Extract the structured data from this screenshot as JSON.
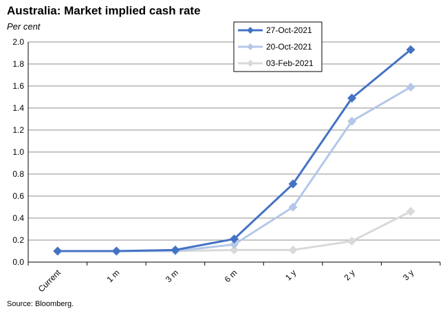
{
  "chart_data": {
    "type": "line",
    "title": "Australia: Market implied cash rate",
    "unit_label": "Per cent",
    "source": "Source: Bloomberg.",
    "categories": [
      "Current",
      "1 m",
      "3 m",
      "6 m",
      "1 y",
      "2 y",
      "3 y"
    ],
    "ylim": [
      0,
      2.0
    ],
    "yticks": [
      "0.0",
      "0.2",
      "0.4",
      "0.6",
      "0.8",
      "1.0",
      "1.2",
      "1.4",
      "1.6",
      "1.8",
      "2.0"
    ],
    "grid": true,
    "legend_position": "top-right",
    "series": [
      {
        "name": "27-Oct-2021",
        "color": "#4472c4",
        "values": [
          0.1,
          0.1,
          0.11,
          0.21,
          0.71,
          1.49,
          1.93
        ]
      },
      {
        "name": "20-Oct-2021",
        "color": "#b4c7e7",
        "values": [
          0.1,
          0.1,
          0.1,
          0.16,
          0.5,
          1.28,
          1.59
        ]
      },
      {
        "name": "03-Feb-2021",
        "color": "#d9d9d9",
        "values": [
          0.1,
          0.1,
          0.1,
          0.11,
          0.11,
          0.19,
          0.46
        ]
      }
    ]
  }
}
